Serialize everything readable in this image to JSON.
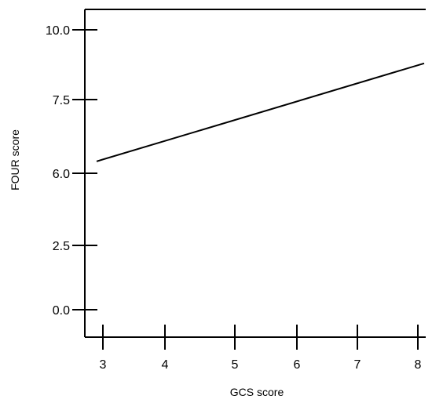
{
  "chart_data": {
    "type": "line",
    "title": "",
    "xlabel": "GCS score",
    "ylabel": "FOUR score",
    "x_ticks": [
      "3",
      "4",
      "5",
      "6",
      "7",
      "8"
    ],
    "y_ticks": [
      "10.0",
      "7.5",
      "6.0",
      "2.5",
      "0.0"
    ],
    "grid": false,
    "legend": "none",
    "line_color": "#000000",
    "series": [
      {
        "x": [
          2.9,
          8.1
        ],
        "y": [
          5.3,
          8.8
        ]
      }
    ]
  }
}
